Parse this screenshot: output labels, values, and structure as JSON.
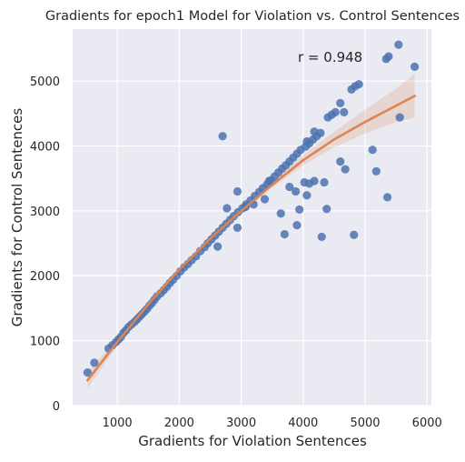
{
  "chart_data": {
    "type": "scatter",
    "title": "Gradients for epoch1 Model for Violation vs. Control Sentences",
    "xlabel": "Gradients for Violation Sentences",
    "ylabel": "Gradients for Control Sentences",
    "xlim": [
      280,
      6070
    ],
    "ylim": [
      0,
      5800
    ],
    "xticks": [
      1000,
      2000,
      3000,
      4000,
      5000,
      6000
    ],
    "yticks": [
      0,
      1000,
      2000,
      3000,
      4000,
      5000
    ],
    "grid": true,
    "annotation": "r = 0.948",
    "colors": {
      "background": "#eaeaf2",
      "grid": "#ffffff",
      "points": "#4c72b0",
      "fit_line": "#dd8452",
      "confidence_band": "#dd8452"
    },
    "points": {
      "x": [
        520,
        630,
        860,
        920,
        980,
        1020,
        1060,
        1100,
        1140,
        1180,
        1230,
        1280,
        1320,
        1360,
        1400,
        1440,
        1480,
        1520,
        1560,
        1600,
        1640,
        1700,
        1750,
        1800,
        1850,
        1900,
        1960,
        2020,
        2080,
        2140,
        2200,
        2270,
        2340,
        2410,
        2460,
        2520,
        2580,
        2640,
        2700,
        2760,
        2820,
        2880,
        2950,
        3020,
        3080,
        3150,
        3220,
        3290,
        3350,
        3420,
        3480,
        3540,
        3600,
        3660,
        3720,
        3780,
        3840,
        3900,
        3960,
        4040,
        4100,
        4160,
        4220,
        4280,
        4060,
        4180,
        4400,
        4460,
        4520,
        4600,
        4660,
        4780,
        4840,
        4900,
        5340,
        5380,
        5540,
        5800,
        2700,
        2940,
        2620,
        2770,
        2940,
        3070,
        3200,
        3380,
        3450,
        3640,
        3700,
        3780,
        3880,
        3900,
        3940,
        4020,
        4060,
        4100,
        4180,
        4300,
        4340,
        4380,
        4600,
        4680,
        4820,
        5120,
        5180,
        5360,
        5560
      ],
      "y": [
        510,
        660,
        880,
        930,
        980,
        1020,
        1060,
        1120,
        1160,
        1210,
        1250,
        1290,
        1330,
        1370,
        1410,
        1450,
        1490,
        1540,
        1580,
        1630,
        1680,
        1730,
        1780,
        1830,
        1890,
        1940,
        2000,
        2070,
        2130,
        2180,
        2240,
        2300,
        2380,
        2440,
        2500,
        2560,
        2620,
        2680,
        2740,
        2800,
        2860,
        2920,
        2980,
        3040,
        3100,
        3160,
        3230,
        3290,
        3350,
        3410,
        3470,
        3530,
        3590,
        3650,
        3700,
        3760,
        3820,
        3880,
        3940,
        3990,
        4040,
        4100,
        4150,
        4200,
        4070,
        4220,
        4440,
        4480,
        4520,
        4660,
        4520,
        4870,
        4920,
        4950,
        5340,
        5380,
        5560,
        5220,
        4150,
        3300,
        2450,
        3040,
        2740,
        3060,
        3100,
        3180,
        3460,
        2960,
        2640,
        3370,
        3300,
        2780,
        3020,
        3440,
        3240,
        3420,
        3460,
        2600,
        3440,
        3030,
        3760,
        3640,
        2630,
        3940,
        3610,
        3210,
        4440
      ]
    },
    "fit": {
      "x": [
        520,
        1000,
        1500,
        2000,
        2500,
        3000,
        3500,
        4000,
        4500,
        5000,
        5500,
        5800
      ],
      "y": [
        390,
        980,
        1560,
        2100,
        2570,
        3000,
        3400,
        3780,
        4100,
        4370,
        4620,
        4770
      ],
      "ci_low": [
        270,
        920,
        1520,
        2070,
        2540,
        2970,
        3360,
        3700,
        3980,
        4190,
        4370,
        4440
      ],
      "ci_high": [
        520,
        1040,
        1600,
        2130,
        2600,
        3030,
        3440,
        3860,
        4220,
        4560,
        4880,
        5110
      ]
    }
  }
}
